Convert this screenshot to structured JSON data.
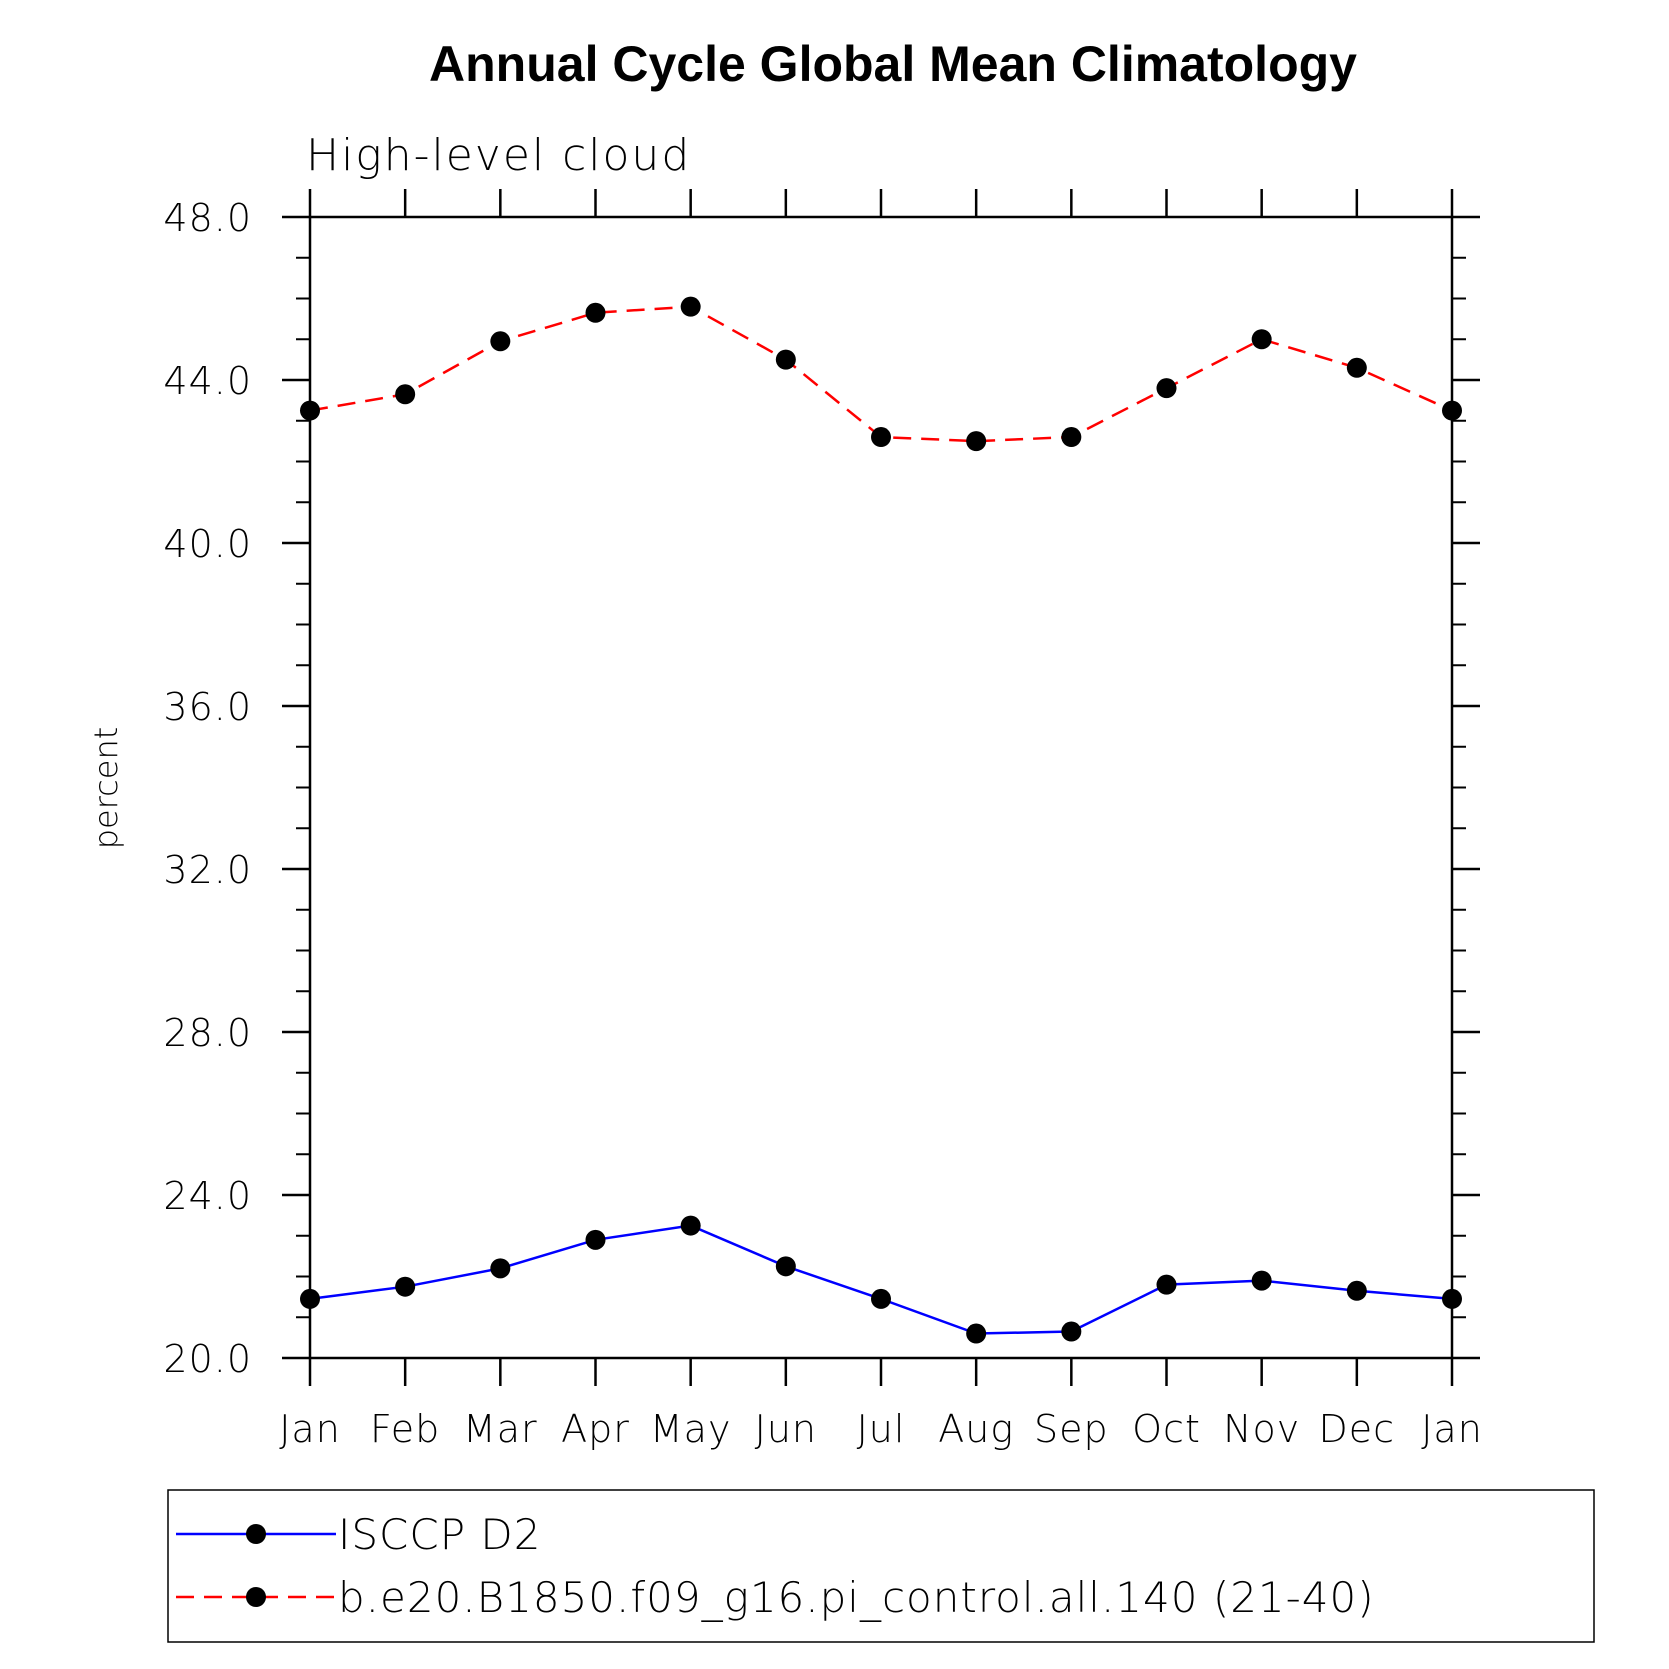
{
  "chart_data": {
    "type": "line",
    "title": "Annual Cycle Global Mean Climatology",
    "subtitle": "High-level cloud",
    "xlabel": "",
    "ylabel": "percent",
    "categories": [
      "Jan",
      "Feb",
      "Mar",
      "Apr",
      "May",
      "Jun",
      "Jul",
      "Aug",
      "Sep",
      "Oct",
      "Nov",
      "Dec",
      "Jan"
    ],
    "ylim": [
      20.0,
      48.0
    ],
    "yticks": [
      "20.0",
      "24.0",
      "28.0",
      "32.0",
      "36.0",
      "40.0",
      "44.0",
      "48.0"
    ],
    "grid": false,
    "legend_position": "bottom",
    "series": [
      {
        "name": "ISCCP D2",
        "color": "#0000ff",
        "line_style": "solid",
        "marker": "filled-circle",
        "values": [
          21.45,
          21.75,
          22.2,
          22.9,
          23.25,
          22.25,
          21.45,
          20.6,
          20.65,
          21.8,
          21.9,
          21.65,
          21.45
        ]
      },
      {
        "name": "b.e20.B1850.f09_g16.pi_control.all.140 (21-40)",
        "color": "#ff0000",
        "line_style": "dashed",
        "marker": "filled-circle",
        "values": [
          43.25,
          43.65,
          44.95,
          45.65,
          45.8,
          44.5,
          42.6,
          42.5,
          42.6,
          43.8,
          45.0,
          44.3,
          43.25
        ]
      }
    ]
  }
}
